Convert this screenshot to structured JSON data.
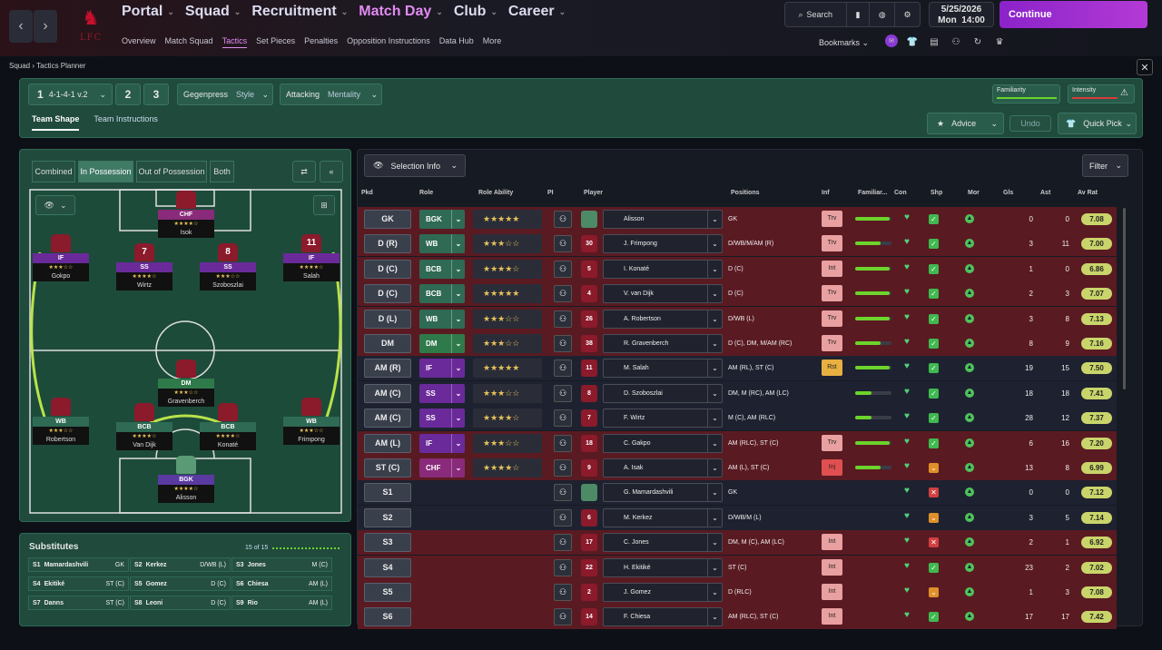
{
  "nav": {
    "main": [
      {
        "label": "Portal",
        "active": false
      },
      {
        "label": "Squad",
        "active": false
      },
      {
        "label": "Recruitment",
        "active": false
      },
      {
        "label": "Match Day",
        "active": true
      },
      {
        "label": "Club",
        "active": false
      },
      {
        "label": "Career",
        "active": false
      }
    ],
    "sub": [
      {
        "label": "Overview",
        "active": false
      },
      {
        "label": "Match Squad",
        "active": false
      },
      {
        "label": "Tactics",
        "active": true
      },
      {
        "label": "Set Pieces",
        "active": false
      },
      {
        "label": "Penalties",
        "active": false
      },
      {
        "label": "Opposition Instructions",
        "active": false
      },
      {
        "label": "Data Hub",
        "active": false
      },
      {
        "label": "More",
        "active": false
      }
    ],
    "search": "Search",
    "date": "5/25/2026",
    "day": "Mon",
    "time": "14:00",
    "continue": "Continue",
    "bookmarks": "Bookmarks",
    "crest_letters": "LFC"
  },
  "breadcrumb": {
    "root": "Squad",
    "current": "Tactics Planner"
  },
  "tactic": {
    "slot1": "1",
    "name": "4-1-4-1 v.2",
    "slot2": "2",
    "slot3": "3",
    "style_value": "Gegenpress",
    "style_label": "Style",
    "mentality_value": "Attacking",
    "mentality_label": "Mentality",
    "familiarity": "Familiarity",
    "intensity": "Intensity"
  },
  "tabs": {
    "shape": "Team Shape",
    "instructions": "Team Instructions",
    "advice": "Advice",
    "undo": "Undo",
    "quickpick": "Quick Pick"
  },
  "pitch_filters": [
    "Combined",
    "In Possession",
    "Out of Possession",
    "Both"
  ],
  "pitch_players": [
    {
      "role": "CHF",
      "num": "",
      "stars": "★★★★☆",
      "name": "Isok",
      "gk": false
    },
    {
      "role": "IF",
      "num": "",
      "stars": "★★★☆☆",
      "name": "Gokpo",
      "gk": false
    },
    {
      "role": "SS",
      "num": "7",
      "stars": "★★★★☆",
      "name": "Wirtz",
      "gk": false
    },
    {
      "role": "SS",
      "num": "8",
      "stars": "★★★☆☆",
      "name": "Szoboszlai",
      "gk": false
    },
    {
      "role": "IF",
      "num": "11",
      "stars": "★★★★☆",
      "name": "Salah",
      "gk": false
    },
    {
      "role": "DM",
      "num": "",
      "stars": "★★★☆☆",
      "name": "Gravenberch",
      "gk": false
    },
    {
      "role": "WB",
      "num": "",
      "stars": "★★★☆☆",
      "name": "Robertson",
      "gk": false
    },
    {
      "role": "BCB",
      "num": "",
      "stars": "★★★★☆",
      "name": "Van Dijk",
      "gk": false
    },
    {
      "role": "BCB",
      "num": "",
      "stars": "★★★★☆",
      "name": "Konaté",
      "gk": false
    },
    {
      "role": "WB",
      "num": "",
      "stars": "★★★☆☆",
      "name": "Frimpong",
      "gk": false
    },
    {
      "role": "BGK",
      "num": "",
      "stars": "★★★★☆",
      "name": "Alisson",
      "gk": true
    }
  ],
  "subs": {
    "title": "Substitutes",
    "count": "15 of 15",
    "items": [
      {
        "slot": "S1",
        "name": "Mamardashvili",
        "pos": "GK"
      },
      {
        "slot": "S2",
        "name": "Kerkez",
        "pos": "D/WB (L)"
      },
      {
        "slot": "S3",
        "name": "Jones",
        "pos": "M (C)"
      },
      {
        "slot": "S4",
        "name": "Ekitiké",
        "pos": "ST (C)"
      },
      {
        "slot": "S5",
        "name": "Gomez",
        "pos": "D (C)"
      },
      {
        "slot": "S6",
        "name": "Chiesa",
        "pos": "AM (L)"
      },
      {
        "slot": "S7",
        "name": "Danns",
        "pos": "ST (C)"
      },
      {
        "slot": "S8",
        "name": "Leoni",
        "pos": "D (C)"
      },
      {
        "slot": "S9",
        "name": "Rio",
        "pos": "AM (L)"
      }
    ]
  },
  "table": {
    "selection_info": "Selection Info",
    "filter": "Filter",
    "headers": [
      "Pkd",
      "Role",
      "Role Ability",
      "PI",
      "Player",
      "Positions",
      "Inf",
      "Familiar...",
      "Con",
      "Shp",
      "Mor",
      "Gls",
      "Ast",
      "Av Rat"
    ],
    "rows": [
      {
        "pkd": "GK",
        "role": "BGK",
        "stars": "★★★★★",
        "num": "",
        "name": "Alisson",
        "positions": "GK",
        "inf": "Trv",
        "fam": 0.95,
        "shp": "ok",
        "gls": "0",
        "ast": "0",
        "rat": "7.08",
        "bg": "#5a1a22",
        "rolecol": "#2f6a55",
        "gk": true
      },
      {
        "pkd": "D (R)",
        "role": "WB",
        "stars": "★★★☆☆",
        "num": "30",
        "name": "J. Frimpong",
        "positions": "D/WB/M/AM (R)",
        "inf": "Trv",
        "fam": 0.7,
        "shp": "ok",
        "gls": "3",
        "ast": "11",
        "rat": "7.00",
        "bg": "#5a1a22",
        "rolecol": "#2f6a55",
        "gk": false
      },
      {
        "pkd": "D (C)",
        "role": "BCB",
        "stars": "★★★★☆",
        "num": "5",
        "name": "I. Konaté",
        "positions": "D (C)",
        "inf": "Int",
        "fam": 0.95,
        "shp": "ok",
        "gls": "1",
        "ast": "0",
        "rat": "6.86",
        "bg": "#5a1a22",
        "rolecol": "#2f6a55",
        "gk": false
      },
      {
        "pkd": "D (C)",
        "role": "BCB",
        "stars": "★★★★★",
        "num": "4",
        "name": "V. van Dijk",
        "positions": "D (C)",
        "inf": "Trv",
        "fam": 0.95,
        "shp": "ok",
        "gls": "2",
        "ast": "3",
        "rat": "7.07",
        "bg": "#5a1a22",
        "rolecol": "#2f6a55",
        "gk": false
      },
      {
        "pkd": "D (L)",
        "role": "WB",
        "stars": "★★★☆☆",
        "num": "26",
        "name": "A. Robertson",
        "positions": "D/WB (L)",
        "inf": "Trv",
        "fam": 0.95,
        "shp": "ok",
        "gls": "3",
        "ast": "8",
        "rat": "7.13",
        "bg": "#5a1a22",
        "rolecol": "#2f6a55",
        "gk": false
      },
      {
        "pkd": "DM",
        "role": "DM",
        "stars": "★★★☆☆",
        "num": "38",
        "name": "R. Gravenberch",
        "positions": "D (C), DM, M/AM (RC)",
        "inf": "Trv",
        "fam": 0.7,
        "shp": "ok",
        "gls": "8",
        "ast": "9",
        "rat": "7.16",
        "bg": "#5a1a22",
        "rolecol": "#2f7a4a",
        "gk": false
      },
      {
        "pkd": "AM (R)",
        "role": "IF",
        "stars": "★★★★★",
        "num": "11",
        "name": "M. Salah",
        "positions": "AM (RL), ST (C)",
        "inf": "Rst",
        "fam": 0.95,
        "shp": "ok",
        "gls": "19",
        "ast": "15",
        "rat": "7.50",
        "bg": "#1e2230",
        "rolecol": "#6a2a9a",
        "gk": false
      },
      {
        "pkd": "AM (C)",
        "role": "SS",
        "stars": "★★★☆☆",
        "num": "8",
        "name": "D. Szoboszlai",
        "positions": "DM, M (RC), AM (LC)",
        "inf": "",
        "fam": 0.45,
        "shp": "ok",
        "gls": "18",
        "ast": "18",
        "rat": "7.41",
        "bg": "#1e2230",
        "rolecol": "#6a2a9a",
        "gk": false
      },
      {
        "pkd": "AM (C)",
        "role": "SS",
        "stars": "★★★★☆",
        "num": "7",
        "name": "F. Wirtz",
        "positions": "M (C), AM (RLC)",
        "inf": "",
        "fam": 0.45,
        "shp": "ok",
        "gls": "28",
        "ast": "12",
        "rat": "7.37",
        "bg": "#1e2230",
        "rolecol": "#6a2a9a",
        "gk": false
      },
      {
        "pkd": "AM (L)",
        "role": "IF",
        "stars": "★★★☆☆",
        "num": "18",
        "name": "C. Gakpo",
        "positions": "AM (RLC), ST (C)",
        "inf": "Trv",
        "fam": 0.95,
        "shp": "ok",
        "gls": "6",
        "ast": "16",
        "rat": "7.20",
        "bg": "#5a1a22",
        "rolecol": "#6a2a9a",
        "gk": false
      },
      {
        "pkd": "ST (C)",
        "role": "CHF",
        "stars": "★★★★☆",
        "num": "9",
        "name": "A. Isak",
        "positions": "AM (L), ST (C)",
        "inf": "Inj",
        "fam": 0.7,
        "shp": "warn",
        "gls": "13",
        "ast": "8",
        "rat": "6.99",
        "bg": "#5a1a22",
        "rolecol": "#8a2a7a",
        "gk": false
      },
      {
        "pkd": "S1",
        "role": "",
        "stars": "",
        "num": "",
        "name": "G. Mamardashvili",
        "positions": "GK",
        "inf": "",
        "fam": 0,
        "shp": "bad",
        "gls": "0",
        "ast": "0",
        "rat": "7.12",
        "bg": "#1e2230",
        "rolecol": "",
        "gk": true
      },
      {
        "pkd": "S2",
        "role": "",
        "stars": "",
        "num": "6",
        "name": "M. Kerkez",
        "positions": "D/WB/M (L)",
        "inf": "",
        "fam": 0,
        "shp": "warn",
        "gls": "3",
        "ast": "5",
        "rat": "7.14",
        "bg": "#1e2230",
        "rolecol": "",
        "gk": false
      },
      {
        "pkd": "S3",
        "role": "",
        "stars": "",
        "num": "17",
        "name": "C. Jones",
        "positions": "DM, M (C), AM (LC)",
        "inf": "Int",
        "fam": 0,
        "shp": "bad",
        "gls": "2",
        "ast": "1",
        "rat": "6.92",
        "bg": "#5a1a22",
        "rolecol": "",
        "gk": false
      },
      {
        "pkd": "S4",
        "role": "",
        "stars": "",
        "num": "22",
        "name": "H. Ekitiké",
        "positions": "ST (C)",
        "inf": "Int",
        "fam": 0,
        "shp": "ok",
        "gls": "23",
        "ast": "2",
        "rat": "7.02",
        "bg": "#5a1a22",
        "rolecol": "",
        "gk": false
      },
      {
        "pkd": "S5",
        "role": "",
        "stars": "",
        "num": "2",
        "name": "J. Gomez",
        "positions": "D (RLC)",
        "inf": "Int",
        "fam": 0,
        "shp": "warn",
        "gls": "1",
        "ast": "3",
        "rat": "7.08",
        "bg": "#5a1a22",
        "rolecol": "",
        "gk": false
      },
      {
        "pkd": "S6",
        "role": "",
        "stars": "",
        "num": "14",
        "name": "F. Chiesa",
        "positions": "AM (RLC), ST (C)",
        "inf": "Int",
        "fam": 0,
        "shp": "ok",
        "gls": "17",
        "ast": "17",
        "rat": "7.42",
        "bg": "#5a1a22",
        "rolecol": "",
        "gk": false
      }
    ]
  }
}
